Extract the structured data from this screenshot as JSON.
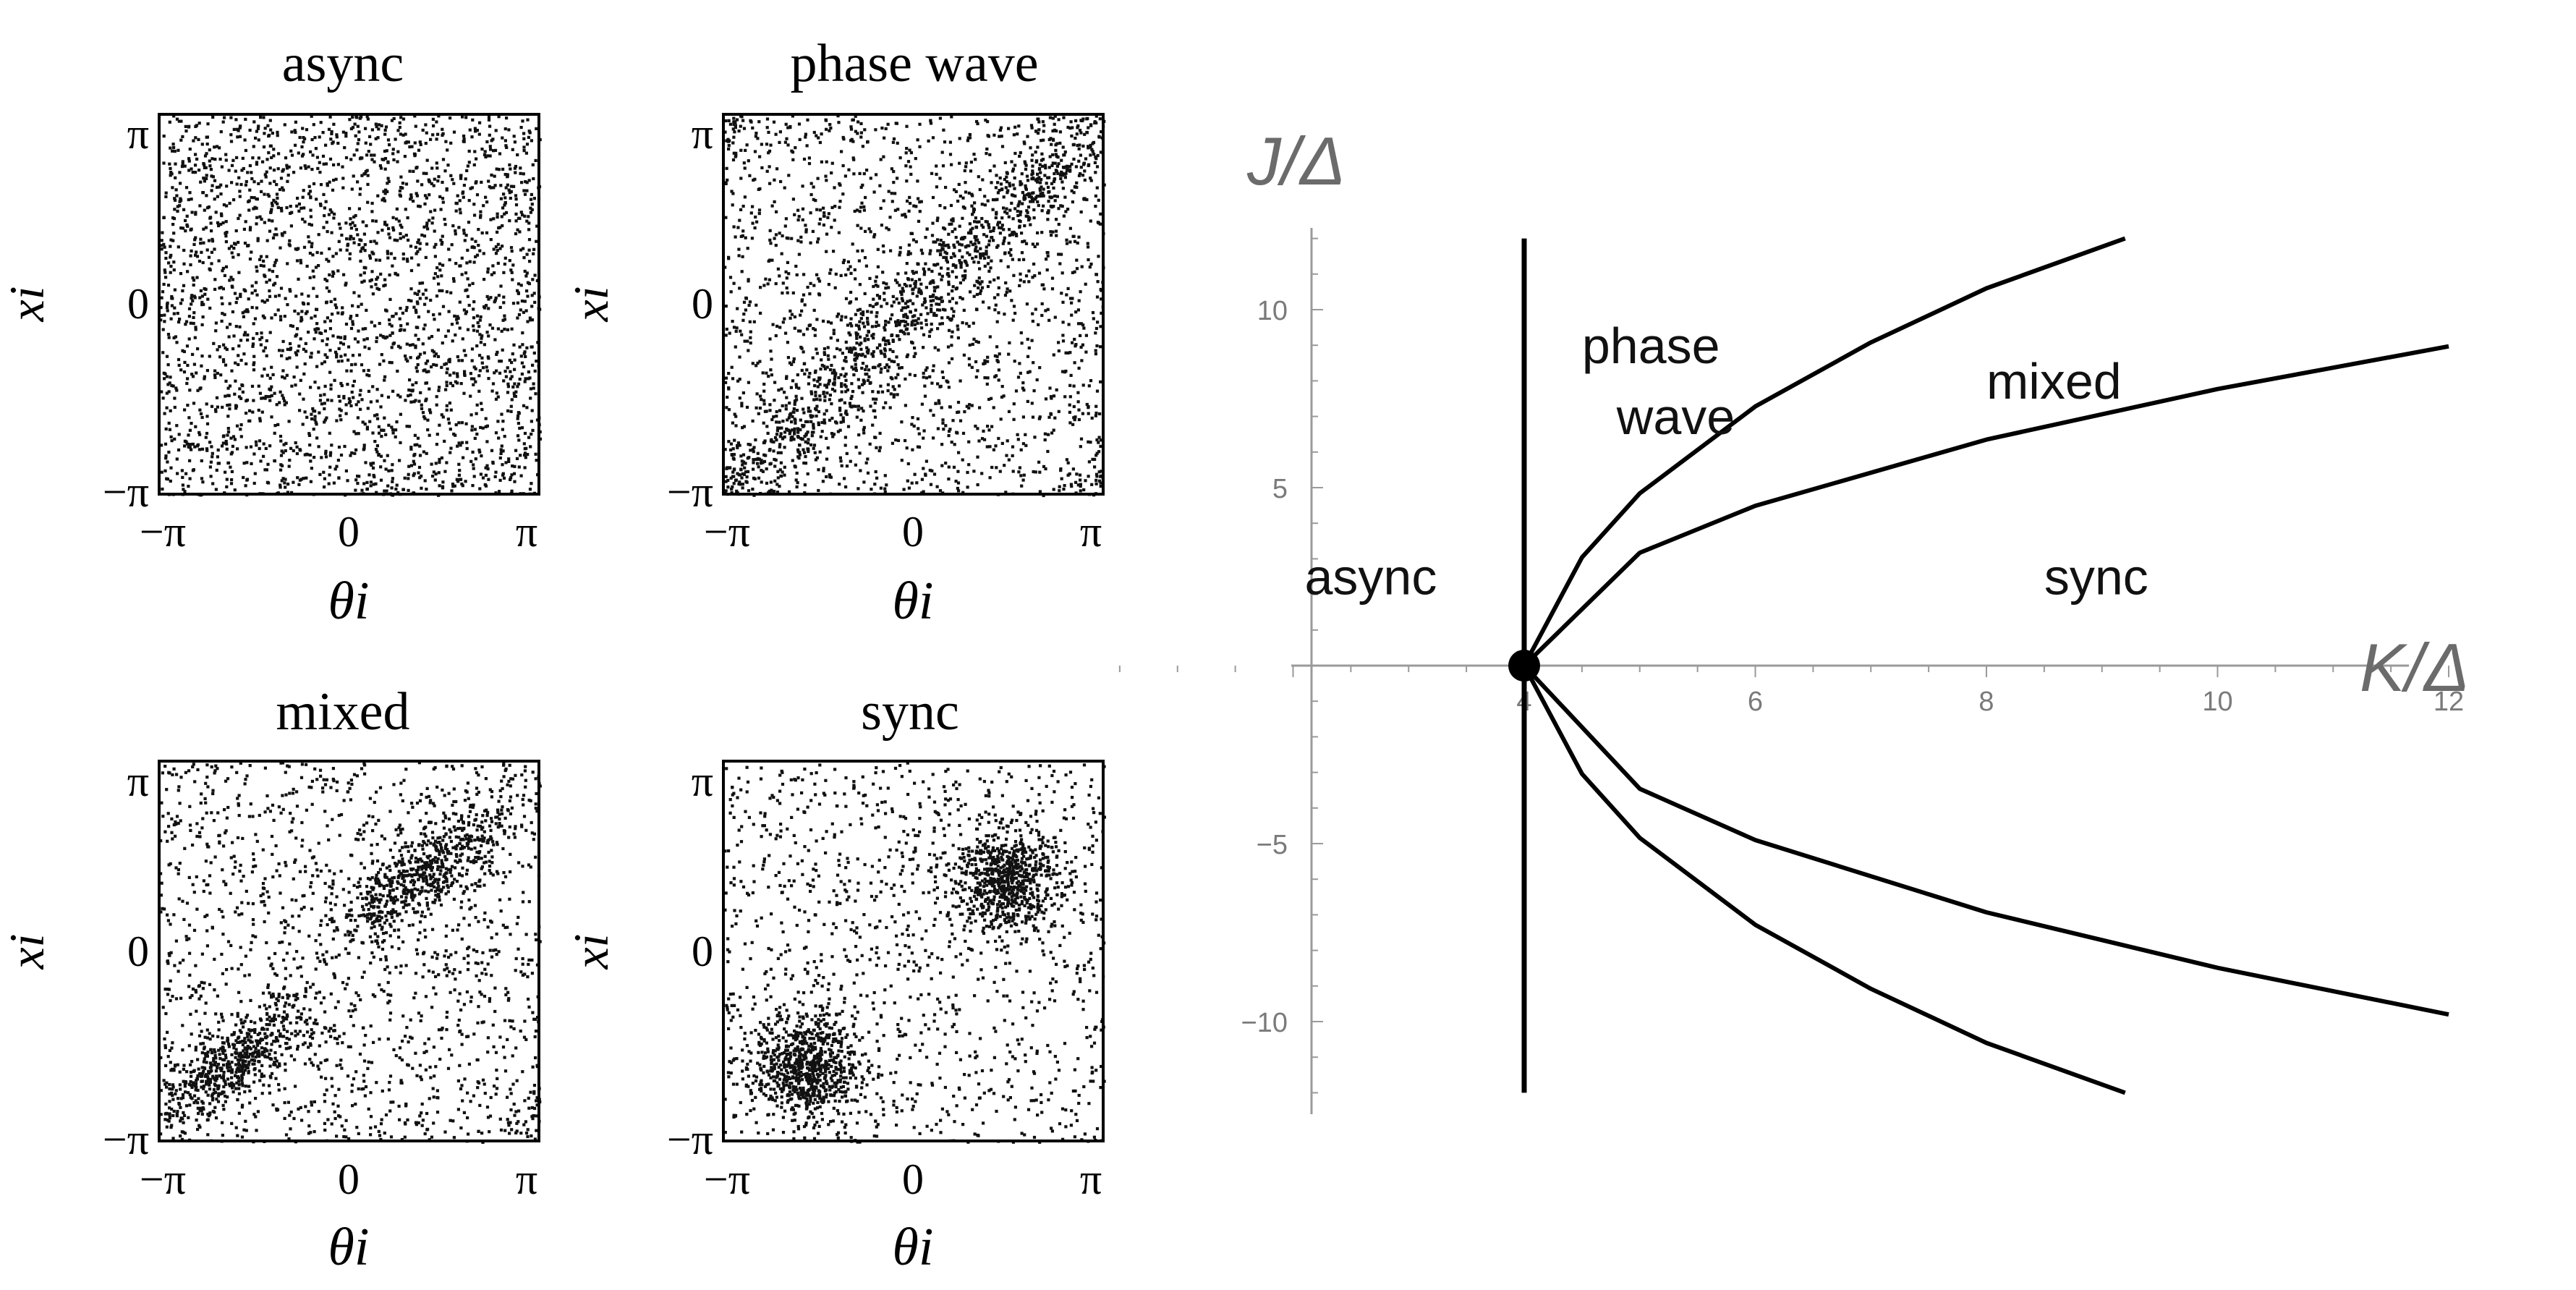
{
  "chart_data": [
    {
      "type": "scatter",
      "panel": "async",
      "title": "async",
      "xlabel": "θi",
      "ylabel": "xi",
      "xlim": [
        -3.14159,
        3.14159
      ],
      "ylim": [
        -3.14159,
        3.14159
      ],
      "xticks": [
        "−π",
        "0",
        "π"
      ],
      "yticks": [
        "−π",
        "0",
        "π"
      ],
      "distribution": "uniform",
      "clusters": [],
      "background_fraction": 1.0
    },
    {
      "type": "scatter",
      "panel": "phase-wave",
      "title": "phase wave",
      "xlabel": "θi",
      "ylabel": "xi",
      "xlim": [
        -3.14159,
        3.14159
      ],
      "ylim": [
        -3.14159,
        3.14159
      ],
      "xticks": [
        "−π",
        "0",
        "π"
      ],
      "yticks": [
        "−π",
        "0",
        "π"
      ],
      "distribution": "diagonal band x = θ",
      "clusters": [],
      "background_fraction": 0.6
    },
    {
      "type": "scatter",
      "panel": "mixed",
      "title": "mixed",
      "xlabel": "θi",
      "ylabel": "xi",
      "xlim": [
        -3.14159,
        3.14159
      ],
      "ylim": [
        -3.14159,
        3.14159
      ],
      "xticks": [
        "−π",
        "0",
        "π"
      ],
      "yticks": [
        "−π",
        "0",
        "π"
      ],
      "distribution": "two elongated clusters along x = θ",
      "clusters": [
        {
          "x": 1.2,
          "y": 1.3
        },
        {
          "x": -1.9,
          "y": -1.8
        }
      ],
      "background_fraction": 0.55
    },
    {
      "type": "scatter",
      "panel": "sync",
      "title": "sync",
      "xlabel": "θi",
      "ylabel": "xi",
      "xlim": [
        -3.14159,
        3.14159
      ],
      "ylim": [
        -3.14159,
        3.14159
      ],
      "xticks": [
        "−π",
        "0",
        "π"
      ],
      "yticks": [
        "−π",
        "0",
        "π"
      ],
      "distribution": "two compact clusters",
      "clusters": [
        {
          "x": 1.5,
          "y": 1.2
        },
        {
          "x": -1.8,
          "y": -1.9
        }
      ],
      "background_fraction": 0.45
    },
    {
      "type": "line",
      "panel": "phase-diagram",
      "xlabel": "K/Δ",
      "ylabel": "J/Δ",
      "xlim": [
        0,
        12
      ],
      "ylim": [
        -12,
        12
      ],
      "xticks": [
        4,
        6,
        8,
        10,
        12
      ],
      "yticks": [
        -10,
        -5,
        5,
        10
      ],
      "critical_point": {
        "x": 4,
        "y": 0
      },
      "vertical_boundary": {
        "x": 4,
        "y_range": [
          -12,
          12
        ]
      },
      "series": [
        {
          "x": [
            4,
            4.5,
            5,
            6,
            7,
            8,
            9.2
          ],
          "y": [
            0,
            3.04,
            4.84,
            7.28,
            9.08,
            10.6,
            12.0
          ]
        },
        {
          "x": [
            4,
            5,
            6,
            8,
            10,
            12
          ],
          "y": [
            0,
            3.17,
            4.49,
            6.35,
            7.77,
            8.97
          ]
        },
        {
          "x": [
            4,
            5,
            6,
            8,
            10,
            12
          ],
          "y": [
            0,
            -3.46,
            -4.9,
            -6.93,
            -8.49,
            -9.8
          ]
        },
        {
          "x": [
            4,
            4.5,
            5,
            6,
            7,
            8,
            9.2
          ],
          "y": [
            0,
            -3.04,
            -4.84,
            -7.28,
            -9.08,
            -10.6,
            -12.0
          ]
        }
      ],
      "region_labels": [
        {
          "text": "phase",
          "x": 4.5,
          "y": 8.5
        },
        {
          "text": "wave",
          "x": 4.8,
          "y": 6.5
        },
        {
          "text": "mixed",
          "x": 8.0,
          "y": 7.5
        },
        {
          "text": "async",
          "x": 2.1,
          "y": 2.0
        },
        {
          "text": "sync",
          "x": 8.5,
          "y": 2.0
        }
      ]
    }
  ]
}
